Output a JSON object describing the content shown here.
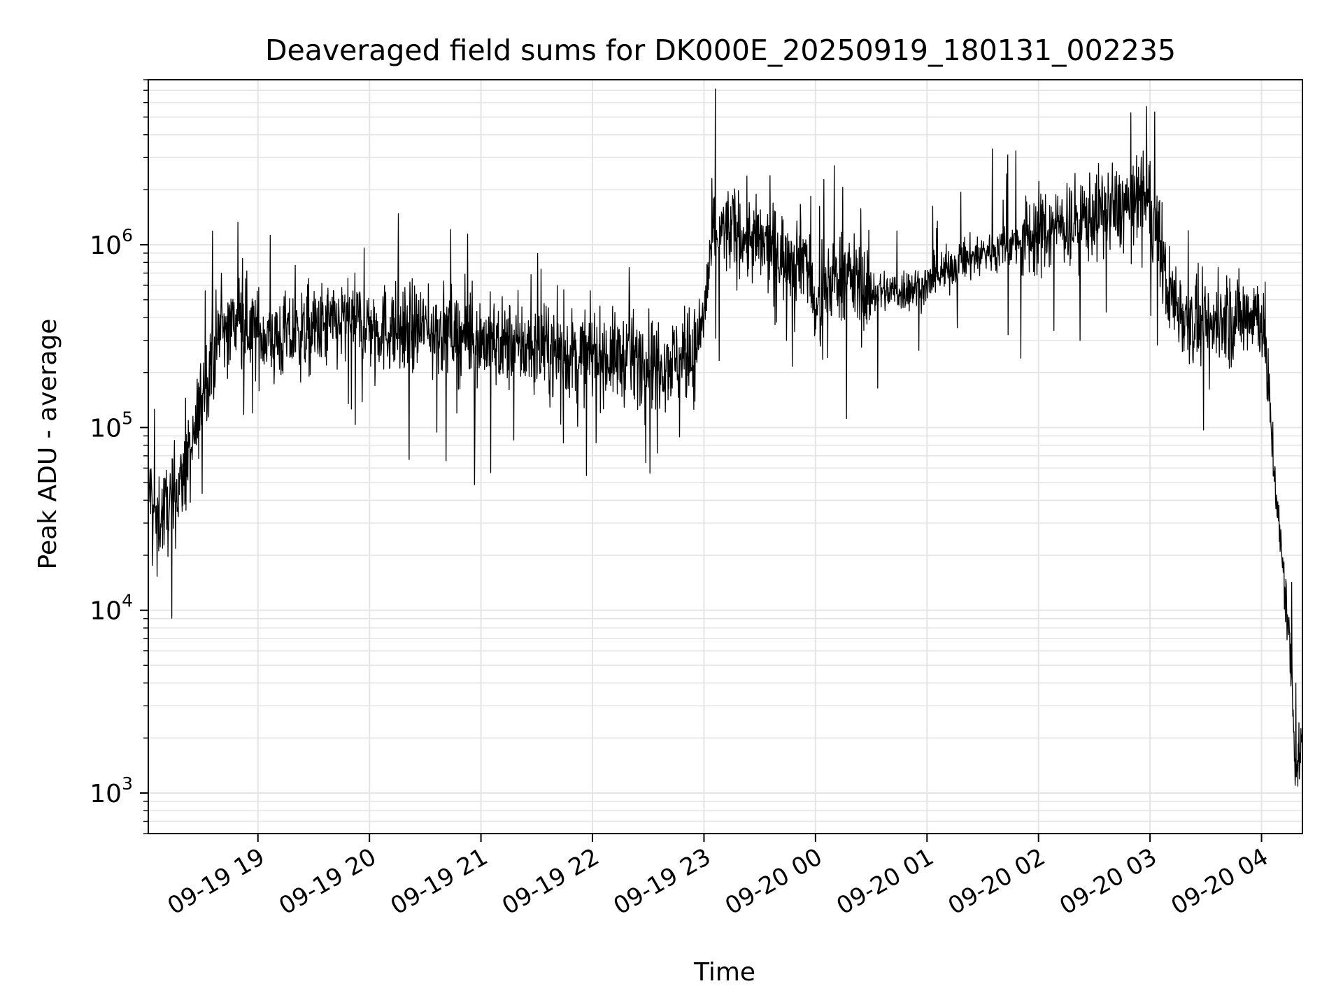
{
  "chart_data": {
    "type": "line",
    "title": "Deaveraged field sums for DK000E_20250919_180131_002235",
    "xlabel": "Time",
    "ylabel": "Peak ADU - average",
    "yscale": "log",
    "grid": true,
    "line_color": "#000000",
    "grid_color": "#e5e5e5",
    "xlim": [
      "2025-09-19 18:01",
      "2025-09-20 04:22"
    ],
    "ylim": [
      600,
      8000000
    ],
    "x_ticks": [
      {
        "t": "2025-09-19 19:00",
        "label": "09-19 19"
      },
      {
        "t": "2025-09-19 20:00",
        "label": "09-19 20"
      },
      {
        "t": "2025-09-19 21:00",
        "label": "09-19 21"
      },
      {
        "t": "2025-09-19 22:00",
        "label": "09-19 22"
      },
      {
        "t": "2025-09-19 23:00",
        "label": "09-19 23"
      },
      {
        "t": "2025-09-20 00:00",
        "label": "09-20 00"
      },
      {
        "t": "2025-09-20 01:00",
        "label": "09-20 01"
      },
      {
        "t": "2025-09-20 02:00",
        "label": "09-20 02"
      },
      {
        "t": "2025-09-20 03:00",
        "label": "09-20 03"
      },
      {
        "t": "2025-09-20 04:00",
        "label": "09-20 04"
      }
    ],
    "y_ticks": [
      {
        "value": 1000,
        "base": "10",
        "exp": "3"
      },
      {
        "value": 10000,
        "base": "10",
        "exp": "4"
      },
      {
        "value": 100000,
        "base": "10",
        "exp": "5"
      },
      {
        "value": 1000000,
        "base": "10",
        "exp": "6"
      }
    ],
    "series": [
      {
        "x": [
          "2025-09-19 18:01",
          "2025-09-19 18:05",
          "2025-09-19 18:10",
          "2025-09-19 18:15",
          "2025-09-19 18:20",
          "2025-09-19 18:25",
          "2025-09-19 18:28",
          "2025-09-19 18:31",
          "2025-09-19 18:35",
          "2025-09-19 18:40",
          "2025-09-19 18:45",
          "2025-09-19 18:50",
          "2025-09-19 18:55",
          "2025-09-19 19:00",
          "2025-09-19 19:10",
          "2025-09-19 19:20",
          "2025-09-19 19:30",
          "2025-09-19 19:40",
          "2025-09-19 19:50",
          "2025-09-19 20:00",
          "2025-09-19 20:15",
          "2025-09-19 20:30",
          "2025-09-19 20:45",
          "2025-09-19 21:00",
          "2025-09-19 21:15",
          "2025-09-19 21:30",
          "2025-09-19 21:45",
          "2025-09-19 22:00",
          "2025-09-19 22:15",
          "2025-09-19 22:30",
          "2025-09-19 22:45",
          "2025-09-19 22:55",
          "2025-09-19 23:00",
          "2025-09-19 23:05",
          "2025-09-19 23:15",
          "2025-09-19 23:30",
          "2025-09-19 23:45",
          "2025-09-19 23:55",
          "2025-09-20 00:00",
          "2025-09-20 00:10",
          "2025-09-20 00:20",
          "2025-09-20 00:30",
          "2025-09-20 00:45",
          "2025-09-20 01:00",
          "2025-09-20 01:15",
          "2025-09-20 01:30",
          "2025-09-20 01:45",
          "2025-09-20 02:00",
          "2025-09-20 02:15",
          "2025-09-20 02:30",
          "2025-09-20 02:45",
          "2025-09-20 02:55",
          "2025-09-20 03:00",
          "2025-09-20 03:10",
          "2025-09-20 03:20",
          "2025-09-20 03:30",
          "2025-09-20 03:40",
          "2025-09-20 03:50",
          "2025-09-20 03:55",
          "2025-09-20 04:00",
          "2025-09-20 04:03",
          "2025-09-20 04:06",
          "2025-09-20 04:09",
          "2025-09-20 04:12",
          "2025-09-20 04:14",
          "2025-09-20 04:16",
          "2025-09-20 04:18",
          "2025-09-20 04:20",
          "2025-09-20 04:22"
        ],
        "y": [
          50000,
          32000,
          35000,
          40000,
          55000,
          75000,
          120000,
          170000,
          250000,
          330000,
          360000,
          380000,
          360000,
          330000,
          300000,
          320000,
          340000,
          360000,
          380000,
          360000,
          340000,
          350000,
          330000,
          300000,
          280000,
          270000,
          250000,
          250000,
          240000,
          240000,
          230000,
          250000,
          420000,
          1150000,
          1200000,
          1000000,
          850000,
          900000,
          400000,
          700000,
          650000,
          550000,
          560000,
          600000,
          780000,
          900000,
          1000000,
          1150000,
          1300000,
          1450000,
          1600000,
          1800000,
          1700000,
          550000,
          400000,
          350000,
          380000,
          400000,
          450000,
          400000,
          200000,
          80000,
          30000,
          15000,
          9000,
          5000,
          1500,
          1500,
          1800
        ]
      }
    ]
  }
}
